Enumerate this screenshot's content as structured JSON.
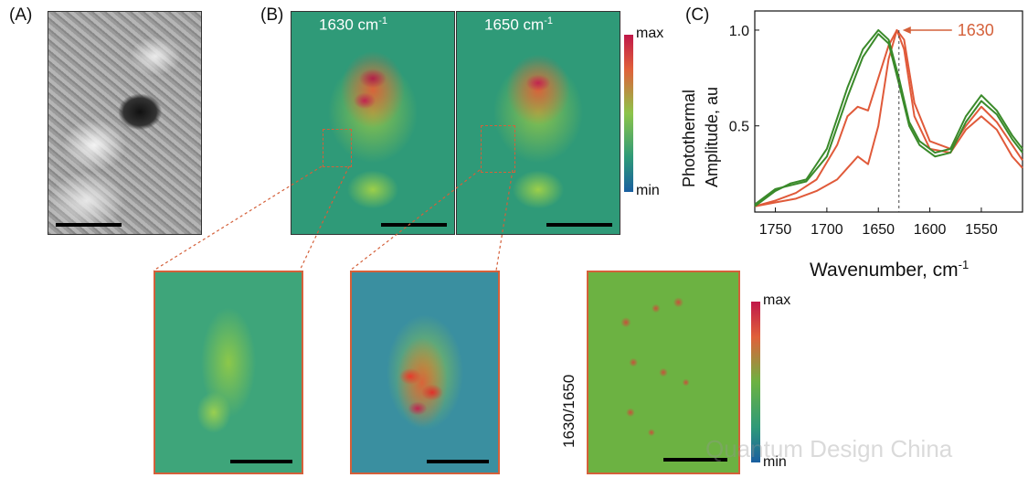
{
  "panel_labels": {
    "a": "(A)",
    "b": "(B)",
    "c": "(C)"
  },
  "maps": {
    "map1_label": "1630 cm",
    "map1_exp": "-1",
    "map2_label": "1650 cm",
    "map2_exp": "-1"
  },
  "colorbar_top": {
    "max": "max",
    "min": "min"
  },
  "colorbar_bottom": {
    "max": "max",
    "min": "min"
  },
  "ratio_label": "1630/1650",
  "watermark": "Quantum Design China",
  "colors": {
    "accent_orange": "#d4603a",
    "ir_red": "#e05a3a",
    "ir_green": "#3a8a2a"
  },
  "chart_data": {
    "type": "line",
    "ylabel_line1": "Photothermal",
    "ylabel_line2": "Amplitude, au",
    "xlabel": "Wavenumber, cm",
    "xlabel_exp": "-1",
    "xlim": [
      1770,
      1510
    ],
    "ylim": [
      0.05,
      1.1
    ],
    "xticks": [
      "1750",
      "1700",
      "1650",
      "1600",
      "1550"
    ],
    "xtick_values": [
      1750,
      1700,
      1650,
      1600,
      1550
    ],
    "yticks": [
      "1.0",
      "0.5"
    ],
    "ytick_values": [
      1.0,
      0.5
    ],
    "annotation": "1630",
    "annotation_x": 1630,
    "series": [
      {
        "color": "#e05a3a",
        "x": [
          1770,
          1750,
          1730,
          1710,
          1690,
          1680,
          1670,
          1660,
          1650,
          1640,
          1632,
          1625,
          1615,
          1600,
          1580,
          1565,
          1550,
          1535,
          1520,
          1510
        ],
        "y": [
          0.08,
          0.1,
          0.12,
          0.16,
          0.22,
          0.28,
          0.34,
          0.3,
          0.5,
          0.85,
          1.0,
          0.9,
          0.55,
          0.38,
          0.36,
          0.48,
          0.55,
          0.48,
          0.34,
          0.28
        ]
      },
      {
        "color": "#e05a3a",
        "x": [
          1770,
          1750,
          1730,
          1710,
          1690,
          1680,
          1670,
          1660,
          1650,
          1640,
          1632,
          1625,
          1615,
          1600,
          1580,
          1565,
          1550,
          1535,
          1520,
          1510
        ],
        "y": [
          0.08,
          0.11,
          0.15,
          0.22,
          0.4,
          0.55,
          0.6,
          0.58,
          0.75,
          0.92,
          1.0,
          0.95,
          0.62,
          0.42,
          0.38,
          0.5,
          0.6,
          0.52,
          0.4,
          0.32
        ]
      },
      {
        "color": "#3a8a2a",
        "x": [
          1770,
          1750,
          1735,
          1720,
          1700,
          1680,
          1665,
          1650,
          1640,
          1630,
          1620,
          1610,
          1595,
          1580,
          1565,
          1550,
          1535,
          1520,
          1510
        ],
        "y": [
          0.08,
          0.16,
          0.2,
          0.22,
          0.38,
          0.7,
          0.9,
          1.0,
          0.95,
          0.75,
          0.52,
          0.42,
          0.36,
          0.38,
          0.55,
          0.66,
          0.58,
          0.45,
          0.38
        ]
      },
      {
        "color": "#3a8a2a",
        "x": [
          1770,
          1750,
          1735,
          1720,
          1700,
          1680,
          1665,
          1650,
          1640,
          1630,
          1620,
          1610,
          1595,
          1580,
          1565,
          1550,
          1535,
          1520,
          1510
        ],
        "y": [
          0.09,
          0.17,
          0.19,
          0.21,
          0.34,
          0.65,
          0.86,
          0.98,
          0.93,
          0.72,
          0.5,
          0.4,
          0.34,
          0.36,
          0.52,
          0.63,
          0.56,
          0.43,
          0.36
        ]
      }
    ]
  }
}
